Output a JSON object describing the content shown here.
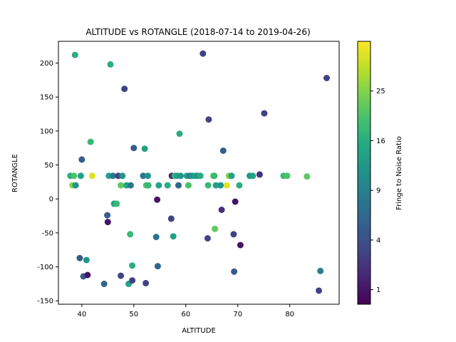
{
  "chart_data": {
    "type": "scatter",
    "title": "ALTITUDE vs ROTANGLE (2018-07-14 to 2019-04-26)",
    "xlabel": "ALTITUDE",
    "ylabel": "ROTANGLE",
    "xlim": [
      35.5,
      89.5
    ],
    "ylim": [
      -155,
      232
    ],
    "xticks": [
      40,
      50,
      60,
      70,
      80
    ],
    "yticks": [
      -150,
      -100,
      -50,
      0,
      50,
      100,
      150,
      200
    ],
    "grid": false,
    "colorbar": {
      "label": "Fringe to Noise Ratio",
      "scale": "sqrt",
      "range": [
        0.5,
        36
      ],
      "ticks": [
        1,
        4,
        9,
        16,
        25
      ],
      "colormap": "viridis"
    },
    "points": [
      {
        "x": 37.8,
        "y": 34,
        "c": 16
      },
      {
        "x": 38.2,
        "y": 20,
        "c": 25
      },
      {
        "x": 38.5,
        "y": 34,
        "c": 20
      },
      {
        "x": 38.8,
        "y": 20,
        "c": 12
      },
      {
        "x": 38.7,
        "y": 212,
        "c": 16
      },
      {
        "x": 39.8,
        "y": 34,
        "c": 14
      },
      {
        "x": 39.6,
        "y": -87,
        "c": 5
      },
      {
        "x": 40.0,
        "y": 58,
        "c": 5
      },
      {
        "x": 40.3,
        "y": -114,
        "c": 5
      },
      {
        "x": 40.9,
        "y": -90,
        "c": 12
      },
      {
        "x": 41.1,
        "y": -112,
        "c": 1
      },
      {
        "x": 41.7,
        "y": 84,
        "c": 18
      },
      {
        "x": 42.0,
        "y": 34,
        "c": 33
      },
      {
        "x": 44.3,
        "y": -125,
        "c": 6
      },
      {
        "x": 44.9,
        "y": -24,
        "c": 5
      },
      {
        "x": 45.0,
        "y": -34,
        "c": 1
      },
      {
        "x": 45.2,
        "y": 34,
        "c": 14
      },
      {
        "x": 45.5,
        "y": 198,
        "c": 16
      },
      {
        "x": 46.0,
        "y": 34,
        "c": 8
      },
      {
        "x": 46.2,
        "y": -7,
        "c": 14
      },
      {
        "x": 46.7,
        "y": -7,
        "c": 18
      },
      {
        "x": 47.0,
        "y": 34,
        "c": 3
      },
      {
        "x": 47.5,
        "y": -113,
        "c": 3
      },
      {
        "x": 47.5,
        "y": 20,
        "c": 22
      },
      {
        "x": 47.8,
        "y": 34,
        "c": 12
      },
      {
        "x": 48.2,
        "y": 162,
        "c": 3
      },
      {
        "x": 48.6,
        "y": 20,
        "c": 14
      },
      {
        "x": 49.0,
        "y": -125,
        "c": 14
      },
      {
        "x": 49.3,
        "y": -52,
        "c": 18
      },
      {
        "x": 49.4,
        "y": 20,
        "c": 8
      },
      {
        "x": 49.7,
        "y": -98,
        "c": 16
      },
      {
        "x": 49.7,
        "y": -120,
        "c": 3
      },
      {
        "x": 50.0,
        "y": 75,
        "c": 5
      },
      {
        "x": 51.8,
        "y": 34,
        "c": 8
      },
      {
        "x": 52.1,
        "y": 74,
        "c": 14
      },
      {
        "x": 52.3,
        "y": -124,
        "c": 3
      },
      {
        "x": 52.4,
        "y": 20,
        "c": 20
      },
      {
        "x": 52.7,
        "y": 34,
        "c": 12
      },
      {
        "x": 52.8,
        "y": 20,
        "c": 18
      },
      {
        "x": 54.3,
        "y": -56,
        "c": 7
      },
      {
        "x": 54.5,
        "y": -1,
        "c": 1
      },
      {
        "x": 54.6,
        "y": -99,
        "c": 6
      },
      {
        "x": 54.8,
        "y": 20,
        "c": 14
      },
      {
        "x": 56.5,
        "y": 20,
        "c": 16
      },
      {
        "x": 57.2,
        "y": -29,
        "c": 3
      },
      {
        "x": 57.3,
        "y": 34,
        "c": 2
      },
      {
        "x": 57.6,
        "y": -55,
        "c": 14
      },
      {
        "x": 57.9,
        "y": 34,
        "c": 18
      },
      {
        "x": 58.3,
        "y": 34,
        "c": 14
      },
      {
        "x": 58.6,
        "y": 20,
        "c": 6
      },
      {
        "x": 58.8,
        "y": 96,
        "c": 16
      },
      {
        "x": 59.0,
        "y": 34,
        "c": 12
      },
      {
        "x": 60.2,
        "y": 34,
        "c": 14
      },
      {
        "x": 60.5,
        "y": 20,
        "c": 20
      },
      {
        "x": 60.8,
        "y": 34,
        "c": 8
      },
      {
        "x": 61.2,
        "y": 34,
        "c": 12
      },
      {
        "x": 61.8,
        "y": 34,
        "c": 14
      },
      {
        "x": 62.3,
        "y": 34,
        "c": 12
      },
      {
        "x": 62.8,
        "y": 34,
        "c": 16
      },
      {
        "x": 63.3,
        "y": 214,
        "c": 3
      },
      {
        "x": 64.2,
        "y": -58,
        "c": 3
      },
      {
        "x": 64.4,
        "y": 117,
        "c": 3
      },
      {
        "x": 64.3,
        "y": 20,
        "c": 18
      },
      {
        "x": 65.3,
        "y": 34,
        "c": 22
      },
      {
        "x": 65.6,
        "y": -44,
        "c": 22
      },
      {
        "x": 65.8,
        "y": 20,
        "c": 14
      },
      {
        "x": 65.5,
        "y": 34,
        "c": 18
      },
      {
        "x": 66.7,
        "y": 20,
        "c": 12
      },
      {
        "x": 66.9,
        "y": -16,
        "c": 2
      },
      {
        "x": 67.2,
        "y": 71,
        "c": 5
      },
      {
        "x": 67.9,
        "y": 20,
        "c": 33
      },
      {
        "x": 68.3,
        "y": 34,
        "c": 25
      },
      {
        "x": 68.8,
        "y": 34,
        "c": 14
      },
      {
        "x": 69.2,
        "y": -52,
        "c": 3
      },
      {
        "x": 69.3,
        "y": -107,
        "c": 5
      },
      {
        "x": 69.5,
        "y": -4,
        "c": 1
      },
      {
        "x": 70.3,
        "y": 20,
        "c": 16
      },
      {
        "x": 70.5,
        "y": -68,
        "c": 1
      },
      {
        "x": 72.3,
        "y": 34,
        "c": 12
      },
      {
        "x": 72.9,
        "y": 34,
        "c": 14
      },
      {
        "x": 74.2,
        "y": 36,
        "c": 2
      },
      {
        "x": 75.1,
        "y": 126,
        "c": 3
      },
      {
        "x": 78.8,
        "y": 34,
        "c": 18
      },
      {
        "x": 79.5,
        "y": 34,
        "c": 20
      },
      {
        "x": 83.3,
        "y": 33,
        "c": 22
      },
      {
        "x": 85.6,
        "y": -135,
        "c": 3
      },
      {
        "x": 85.9,
        "y": -106,
        "c": 9
      },
      {
        "x": 87.1,
        "y": 178,
        "c": 3
      }
    ]
  }
}
